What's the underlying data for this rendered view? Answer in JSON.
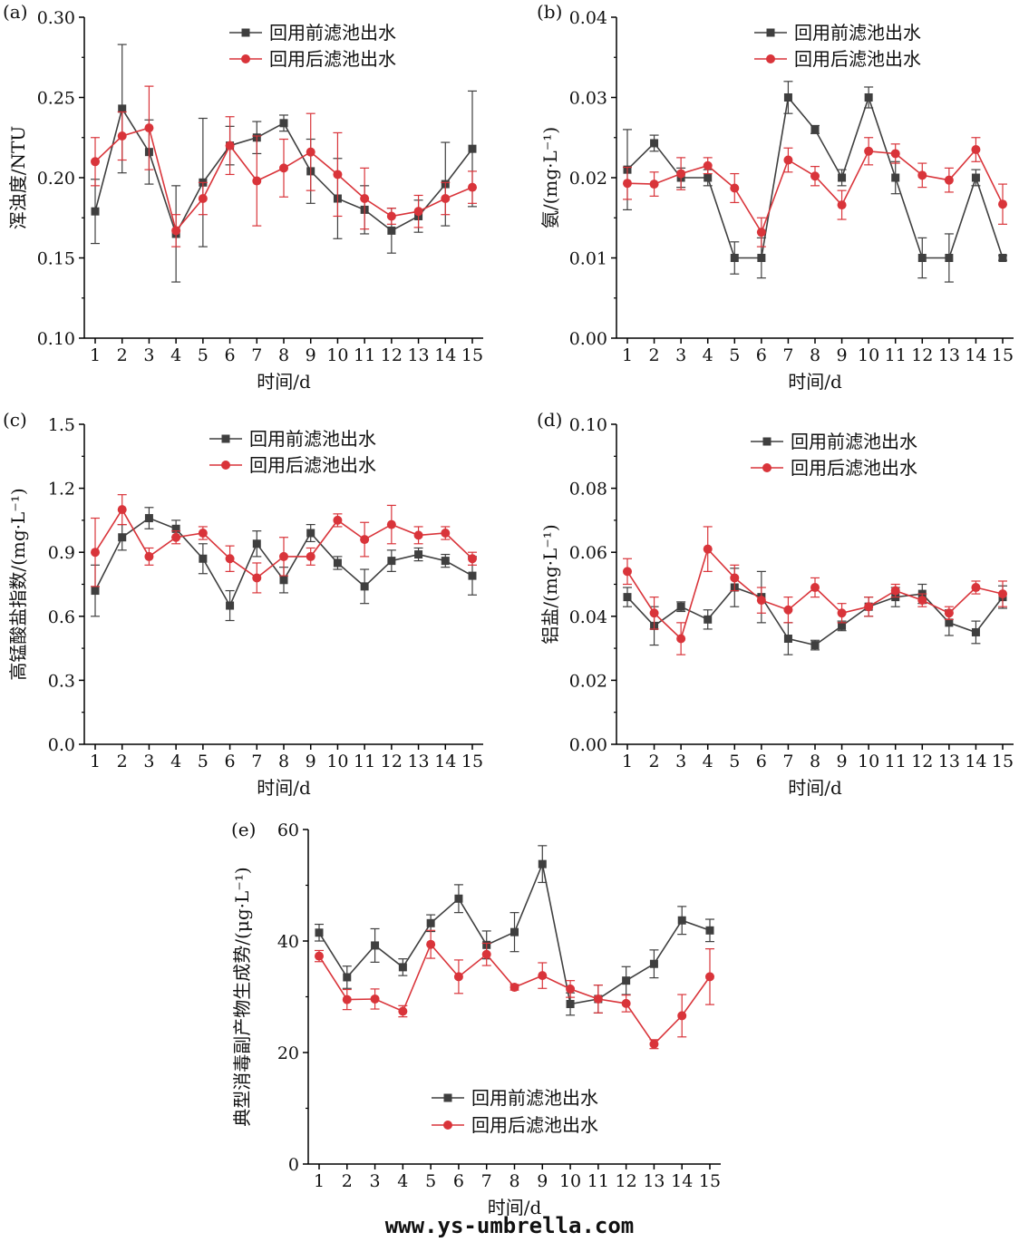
{
  "colors": {
    "before": "#3f3f3f",
    "after": "#d9343a",
    "axis": "#000000"
  },
  "charts": [
    {
      "type": "line",
      "panel": "(a)",
      "title": "",
      "xlabel": "时间/d",
      "ylabel": "浑浊度/NTU",
      "ylim": [
        0.1,
        0.3
      ],
      "yticks": [
        "0.10",
        "0.15",
        "0.20",
        "0.25",
        "0.30"
      ],
      "x": [
        1,
        2,
        3,
        4,
        5,
        6,
        7,
        8,
        9,
        10,
        11,
        12,
        13,
        14,
        15
      ],
      "legend_position": "top-right",
      "series": [
        {
          "name": "回用前滤池出水",
          "values": [
            0.179,
            0.243,
            0.216,
            0.165,
            0.197,
            0.22,
            0.225,
            0.234,
            0.204,
            0.187,
            0.18,
            0.167,
            0.176,
            0.196,
            0.218
          ],
          "errors": [
            0.02,
            0.04,
            0.02,
            0.03,
            0.04,
            0.012,
            0.01,
            0.005,
            0.02,
            0.025,
            0.015,
            0.014,
            0.01,
            0.026,
            0.036
          ]
        },
        {
          "name": "回用后滤池出水",
          "values": [
            0.21,
            0.226,
            0.231,
            0.167,
            0.187,
            0.22,
            0.198,
            0.206,
            0.216,
            0.202,
            0.187,
            0.176,
            0.179,
            0.187,
            0.194
          ],
          "errors": [
            0.015,
            0.015,
            0.026,
            0.01,
            0.01,
            0.018,
            0.028,
            0.018,
            0.024,
            0.026,
            0.019,
            0.005,
            0.01,
            0.01,
            0.01
          ]
        }
      ]
    },
    {
      "type": "line",
      "panel": "(b)",
      "title": "",
      "xlabel": "时间/d",
      "ylabel": "氨/(mg·L⁻¹)",
      "ylim": [
        0,
        0.04
      ],
      "yticks": [
        "0.00",
        "0.01",
        "0.02",
        "0.03",
        "0.04"
      ],
      "x": [
        1,
        2,
        3,
        4,
        5,
        6,
        7,
        8,
        9,
        10,
        11,
        12,
        13,
        14,
        15
      ],
      "legend_position": "top-right",
      "series": [
        {
          "name": "回用前滤池出水",
          "values": [
            0.021,
            0.0243,
            0.02,
            0.02,
            0.01,
            0.01,
            0.03,
            0.026,
            0.02,
            0.03,
            0.02,
            0.01,
            0.01,
            0.02,
            0.01
          ],
          "errors": [
            0.005,
            0.001,
            0.0012,
            0.001,
            0.002,
            0.0025,
            0.002,
            0.0005,
            0.001,
            0.0013,
            0.002,
            0.0025,
            0.003,
            0.001,
            0.0003
          ]
        },
        {
          "name": "回用后滤池出水",
          "values": [
            0.0193,
            0.0192,
            0.0205,
            0.0215,
            0.0187,
            0.0132,
            0.0222,
            0.0202,
            0.0166,
            0.0233,
            0.023,
            0.0203,
            0.0197,
            0.0235,
            0.0167
          ],
          "errors": [
            0.002,
            0.0015,
            0.002,
            0.001,
            0.0018,
            0.0018,
            0.0015,
            0.0012,
            0.0018,
            0.0017,
            0.0012,
            0.0015,
            0.0015,
            0.0015,
            0.0025
          ]
        }
      ]
    },
    {
      "type": "line",
      "panel": "(c)",
      "title": "",
      "xlabel": "时间/d",
      "ylabel": "高锰酸盐指数/(mg·L⁻¹)",
      "ylim": [
        0,
        1.5
      ],
      "yticks": [
        "0.0",
        "0.3",
        "0.6",
        "0.9",
        "1.2",
        "1.5"
      ],
      "x": [
        1,
        2,
        3,
        4,
        5,
        6,
        7,
        8,
        9,
        10,
        11,
        12,
        13,
        14,
        15
      ],
      "legend_position": "top-right",
      "series": [
        {
          "name": "回用前滤池出水",
          "values": [
            0.72,
            0.97,
            1.06,
            1.01,
            0.87,
            0.65,
            0.94,
            0.77,
            0.99,
            0.85,
            0.74,
            0.86,
            0.89,
            0.86,
            0.79
          ],
          "errors": [
            0.12,
            0.06,
            0.05,
            0.04,
            0.07,
            0.07,
            0.06,
            0.06,
            0.04,
            0.03,
            0.08,
            0.05,
            0.03,
            0.03,
            0.09
          ]
        },
        {
          "name": "回用后滤池出水",
          "values": [
            0.9,
            1.1,
            0.88,
            0.97,
            0.99,
            0.87,
            0.78,
            0.88,
            0.88,
            1.05,
            0.96,
            1.03,
            0.98,
            0.99,
            0.87
          ],
          "errors": [
            0.16,
            0.07,
            0.04,
            0.03,
            0.03,
            0.06,
            0.07,
            0.09,
            0.04,
            0.03,
            0.08,
            0.09,
            0.04,
            0.03,
            0.03
          ]
        }
      ]
    },
    {
      "type": "line",
      "panel": "(d)",
      "title": "",
      "xlabel": "时间/d",
      "ylabel": "铝盐/(mg·L⁻¹)",
      "ylim": [
        0,
        0.1
      ],
      "yticks": [
        "0.00",
        "0.02",
        "0.04",
        "0.06",
        "0.08",
        "0.10"
      ],
      "x": [
        1,
        2,
        3,
        4,
        5,
        6,
        7,
        8,
        9,
        10,
        11,
        12,
        13,
        14,
        15
      ],
      "legend_position": "top-right",
      "series": [
        {
          "name": "回用前滤池出水",
          "values": [
            0.046,
            0.037,
            0.043,
            0.039,
            0.049,
            0.046,
            0.033,
            0.031,
            0.037,
            0.043,
            0.046,
            0.047,
            0.038,
            0.035,
            0.046
          ],
          "errors": [
            0.003,
            0.006,
            0.0015,
            0.003,
            0.006,
            0.008,
            0.005,
            0.0015,
            0.0015,
            0.003,
            0.003,
            0.003,
            0.004,
            0.0035,
            0.0035
          ]
        },
        {
          "name": "回用后滤池出水",
          "values": [
            0.054,
            0.041,
            0.033,
            0.061,
            0.052,
            0.045,
            0.042,
            0.049,
            0.041,
            0.043,
            0.048,
            0.045,
            0.041,
            0.049,
            0.047
          ],
          "errors": [
            0.004,
            0.005,
            0.005,
            0.007,
            0.004,
            0.004,
            0.004,
            0.003,
            0.003,
            0.003,
            0.002,
            0.002,
            0.002,
            0.002,
            0.004
          ]
        }
      ]
    },
    {
      "type": "line",
      "panel": "(e)",
      "title": "",
      "xlabel": "时间/d",
      "ylabel": "典型消毒副产物生成势/(μg·L⁻¹)",
      "ylim": [
        0,
        60
      ],
      "yticks": [
        "0",
        "20",
        "40",
        "60"
      ],
      "x": [
        1,
        2,
        3,
        4,
        5,
        6,
        7,
        8,
        9,
        10,
        11,
        12,
        13,
        14,
        15
      ],
      "legend_position": "bottom-right",
      "series": [
        {
          "name": "回用前滤池出水",
          "values": [
            41.5,
            33.5,
            39.2,
            35.3,
            43.2,
            47.6,
            39.3,
            41.6,
            53.8,
            28.7,
            29.6,
            32.9,
            35.9,
            43.7,
            41.9
          ],
          "errors": [
            1.5,
            2.0,
            3.0,
            1.5,
            1.5,
            2.5,
            2.5,
            3.5,
            3.3,
            2.0,
            2.5,
            2.5,
            2.5,
            2.5,
            2.0
          ]
        },
        {
          "name": "回用后滤池出水",
          "values": [
            37.3,
            29.5,
            29.6,
            27.4,
            39.4,
            33.6,
            37.6,
            31.7,
            33.8,
            31.4,
            29.6,
            28.8,
            21.5,
            26.6,
            33.6
          ],
          "errors": [
            1.0,
            1.8,
            1.8,
            1.0,
            2.5,
            3.0,
            2.0,
            0.5,
            2.3,
            1.5,
            2.5,
            1.5,
            0.8,
            3.8,
            5.0
          ]
        }
      ]
    }
  ],
  "watermark": "www.ys-umbrella.com"
}
